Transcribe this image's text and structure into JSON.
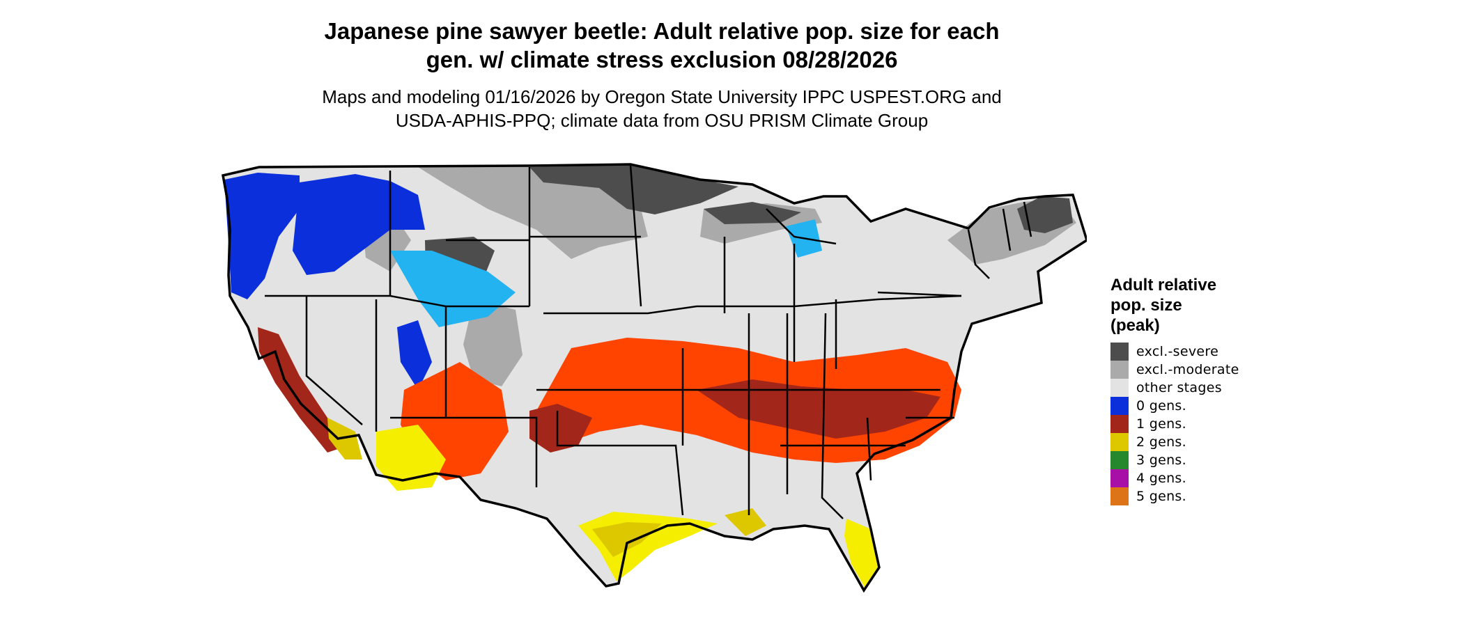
{
  "title": {
    "line1": "Japanese pine sawyer beetle: Adult relative pop. size for each",
    "line2": "gen. w/ climate stress exclusion 08/28/2026"
  },
  "subtitle": {
    "line1": "Maps and modeling 01/16/2026 by Oregon State University IPPC USPEST.ORG and",
    "line2": "USDA-APHIS-PPQ; climate data from OSU PRISM Climate Group"
  },
  "legend": {
    "title_line1": "Adult relative",
    "title_line2": "pop. size",
    "title_line3": "(peak)",
    "items": [
      {
        "label": "excl.-severe",
        "color": "#4d4d4d"
      },
      {
        "label": "excl.-moderate",
        "color": "#aaaaaa"
      },
      {
        "label": "other stages",
        "color": "#e3e3e3"
      },
      {
        "label": "0 gens.",
        "color": "#0a2fdb"
      },
      {
        "label": "1 gens.",
        "color": "#a2261a"
      },
      {
        "label": "2 gens.",
        "color": "#ddc800"
      },
      {
        "label": "3 gens.",
        "color": "#26882c"
      },
      {
        "label": "4 gens.",
        "color": "#a80fa6"
      },
      {
        "label": "5 gens.",
        "color": "#dd7418"
      }
    ]
  },
  "map_colors": {
    "other_stages": "#e3e3e3",
    "excl_moderate": "#aaaaaa",
    "excl_severe": "#4d4d4d",
    "zero_gens": "#0a2fdb",
    "zero_gens_light": "#22b3f0",
    "one_gen": "#a2261a",
    "one_gen_orange": "#ff4400",
    "two_gens": "#ddc800",
    "two_gens_bright": "#f5ee00",
    "border": "#000000"
  }
}
